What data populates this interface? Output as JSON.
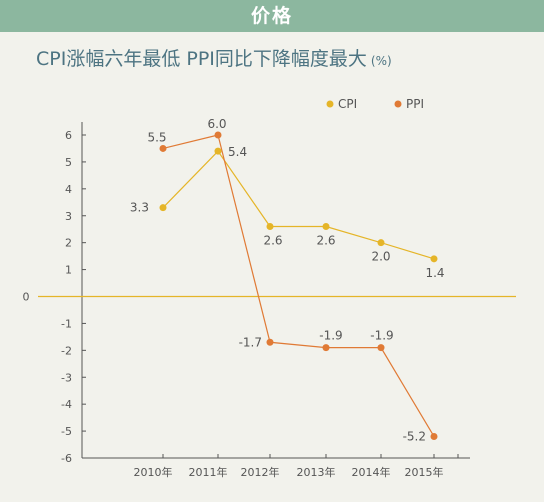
{
  "header": {
    "banner": "价格"
  },
  "chart_data": {
    "type": "line",
    "title": "CPI涨幅六年最低  PPI同比下降幅度最大",
    "unit": "(%)",
    "categories": [
      "2010年",
      "2011年",
      "2012年",
      "2013年",
      "2014年",
      "2015年"
    ],
    "series": [
      {
        "name": "CPI",
        "color": "#e5b528",
        "values": [
          3.3,
          5.4,
          2.6,
          2.6,
          2.0,
          1.4
        ]
      },
      {
        "name": "PPI",
        "color": "#e07a35",
        "values": [
          5.5,
          6.0,
          -1.7,
          -1.9,
          -1.9,
          -5.2
        ]
      }
    ],
    "data_labels": {
      "CPI": [
        "3.3",
        "5.4",
        "2.6",
        "2.6",
        "2.0",
        "1.4"
      ],
      "PPI": [
        "5.5",
        "6.0",
        "-1.7",
        "-1.9",
        "-1.9",
        "-5.2"
      ]
    },
    "yticks": [
      "6",
      "5",
      "4",
      "3",
      "2",
      "1",
      "0",
      "-1",
      "-2",
      "-3",
      "-4",
      "-5",
      "-6"
    ],
    "ylim": [
      -6,
      6
    ],
    "zero_line_color": "#e5b528",
    "legend": "top-right",
    "grid": false
  }
}
